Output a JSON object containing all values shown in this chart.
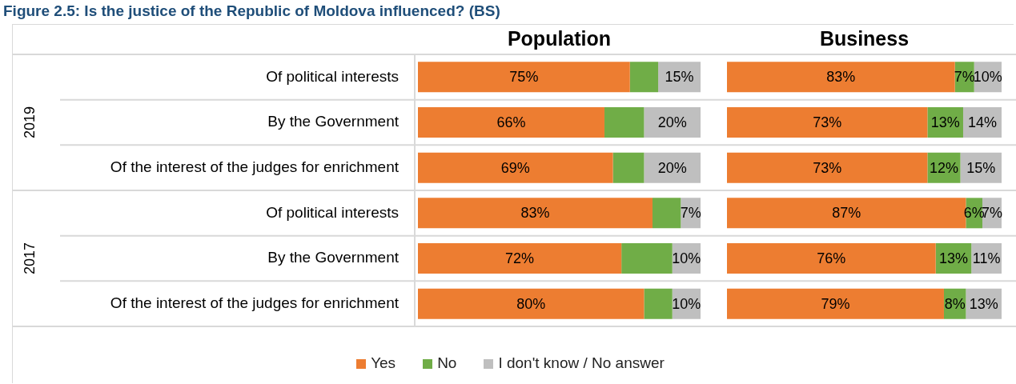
{
  "chart_data": [
    {
      "type": "bar",
      "orientation": "horizontal",
      "stacked": true,
      "title": "Population",
      "annotations": [
        "Figure 2.5: Is the justice of the Republic of Moldova influenced? (BS)",
        "2019",
        "2017"
      ],
      "categories": [
        "Of political interests",
        "By the Government",
        "Of the interest of the judges for enrichment",
        "Of political interests",
        "By the Government",
        "Of the interest of the judges for enrichment"
      ],
      "xlim": [
        0,
        100
      ],
      "tick_labels": "y",
      "grid": "y",
      "legend": "bottom",
      "series": [
        {
          "name": "Yes",
          "color": "#ed7d31",
          "values": [
            75,
            66,
            69,
            83,
            72,
            80
          ],
          "value_labels": [
            "75%",
            "66%",
            "69%",
            "83%",
            "72%",
            "80%"
          ]
        },
        {
          "name": "No",
          "color": "#70ad47",
          "values": [
            10,
            14,
            11,
            10,
            18,
            10
          ],
          "value_labels": [
            null,
            null,
            null,
            null,
            null,
            null
          ]
        },
        {
          "name": "I don't know / No answer",
          "color": "#bfbfbf",
          "values": [
            15,
            20,
            20,
            7,
            10,
            10
          ],
          "value_labels": [
            "15%",
            "20%",
            "20%",
            "7%",
            "10%",
            "10%"
          ]
        }
      ]
    },
    {
      "type": "bar",
      "orientation": "horizontal",
      "stacked": true,
      "title": "Business",
      "categories": [
        null,
        null,
        null,
        null,
        null,
        null
      ],
      "xlim": [
        0,
        100
      ],
      "tick_labels": false,
      "grid": "y",
      "legend": false,
      "series": [
        {
          "color": "#ed7d31",
          "values": [
            83,
            73,
            73,
            87,
            76,
            79
          ],
          "value_labels": [
            "83%",
            "73%",
            "73%",
            "87%",
            "76%",
            "79%"
          ]
        },
        {
          "color": "#70ad47",
          "values": [
            7,
            13,
            12,
            6,
            13,
            8
          ],
          "value_labels": [
            "7%",
            "13%",
            "12%",
            "6%",
            "13%",
            "8%"
          ]
        },
        {
          "color": "#bfbfbf",
          "values": [
            10,
            14,
            15,
            7,
            11,
            13
          ],
          "value_labels": [
            "10%",
            "14%",
            "15%",
            "7%",
            "11%",
            "13%"
          ]
        }
      ]
    }
  ]
}
